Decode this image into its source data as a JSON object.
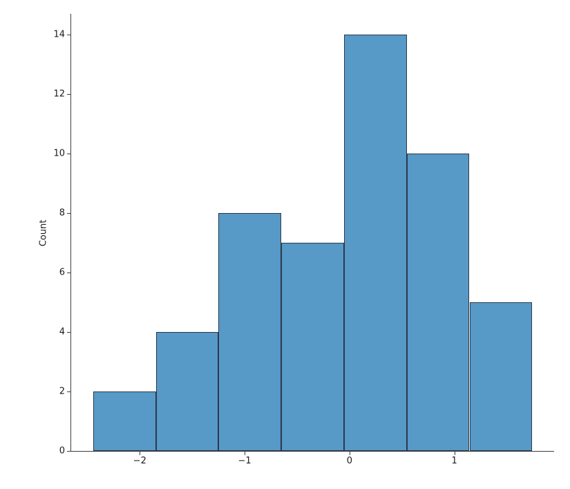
{
  "chart_data": {
    "type": "bar",
    "variant": "histogram",
    "title": "",
    "xlabel": "",
    "ylabel": "Count",
    "bin_edges": [
      -2.444,
      -1.846,
      -1.248,
      -0.65,
      -0.052,
      0.546,
      1.144,
      1.742
    ],
    "counts": [
      2,
      4,
      8,
      7,
      14,
      10,
      5
    ],
    "xlim": [
      -2.654,
      1.951
    ],
    "ylim": [
      0,
      14.7
    ],
    "xticks": [
      -2,
      -1,
      0,
      1
    ],
    "xtick_labels": [
      "−2",
      "−1",
      "0",
      "1"
    ],
    "yticks": [
      0,
      2,
      4,
      6,
      8,
      10,
      12,
      14
    ],
    "grid": false,
    "legend": null,
    "colors": {
      "bar_fill": "#5799c7",
      "bar_edge": "#2a3948",
      "axis": "#3c3c3c",
      "text": "#1a1a1a",
      "background": "#ffffff"
    }
  }
}
